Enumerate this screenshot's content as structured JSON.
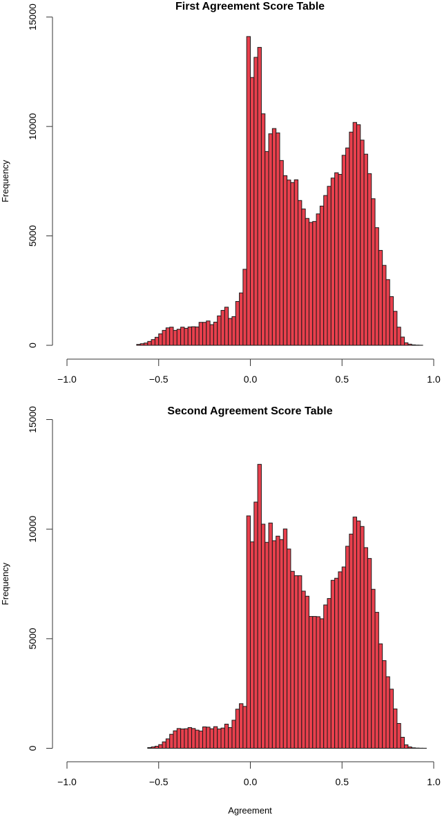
{
  "chart_data": [
    {
      "type": "bar",
      "subtype": "histogram",
      "title": "First Agreement Score Table",
      "xlabel": "",
      "ylabel": "Frequency",
      "xlim": [
        -1.0,
        1.0
      ],
      "ylim": [
        0,
        15000
      ],
      "xticks": [
        "-1.0",
        "-0.5",
        "0.0",
        "0.5",
        "1.0"
      ],
      "yticks": [
        "0",
        "5000",
        "10000",
        "15000"
      ],
      "bin_width": 0.02,
      "bin_start": -0.62,
      "bar_color": "#e8404d",
      "values": [
        42,
        74,
        105,
        179,
        263,
        368,
        525,
        683,
        798,
        830,
        683,
        735,
        830,
        777,
        840,
        850,
        840,
        1050,
        1050,
        1113,
        945,
        1060,
        1344,
        1596,
        1743,
        1228,
        1312,
        2005,
        2394,
        3475,
        14110,
        12240,
        13160,
        13615,
        10580,
        8856,
        9666,
        9906,
        9707,
        8446,
        7753,
        7554,
        7438,
        7564,
        6618,
        6230,
        5799,
        5618,
        5660,
        6006,
        6363,
        6846,
        7266,
        7644,
        7886,
        7812,
        8684,
        9020,
        9744,
        10185,
        10080,
        9377,
        8736,
        7844,
        6699,
        5376,
        4337,
        3654,
        3003,
        2226,
        1554,
        830,
        378,
        116,
        53,
        21,
        10,
        5
      ]
    },
    {
      "type": "bar",
      "subtype": "histogram",
      "title": "Second Agreement Score Table",
      "xlabel": "Agreement",
      "ylabel": "Frequency",
      "xlim": [
        -1.0,
        1.0
      ],
      "ylim": [
        0,
        15000
      ],
      "xticks": [
        "-1.0",
        "-0.5",
        "0.0",
        "0.5",
        "1.0"
      ],
      "yticks": [
        "0",
        "5000",
        "10000",
        "15000"
      ],
      "bin_width": 0.02,
      "bin_start": -0.56,
      "bar_color": "#e8404d",
      "values": [
        31,
        63,
        95,
        168,
        294,
        430,
        640,
        798,
        903,
        882,
        892,
        945,
        903,
        830,
        788,
        977,
        966,
        892,
        987,
        882,
        924,
        1103,
        945,
        1281,
        1785,
        2037,
        1911,
        10605,
        9419,
        11235,
        12957,
        10227,
        9398,
        10280,
        9471,
        9681,
        9524,
        10007,
        9093,
        8075,
        7875,
        7875,
        7171,
        6940,
        6016,
        6016,
        6006,
        5911,
        6541,
        6835,
        7665,
        7760,
        8053,
        8274,
        9219,
        9775,
        10552,
        10374,
        10122,
        9156,
        8662,
        7255,
        6205,
        4767,
        4000,
        3265,
        2698,
        1795,
        1134,
        504,
        158,
        63,
        21,
        10,
        5,
        3
      ]
    }
  ]
}
